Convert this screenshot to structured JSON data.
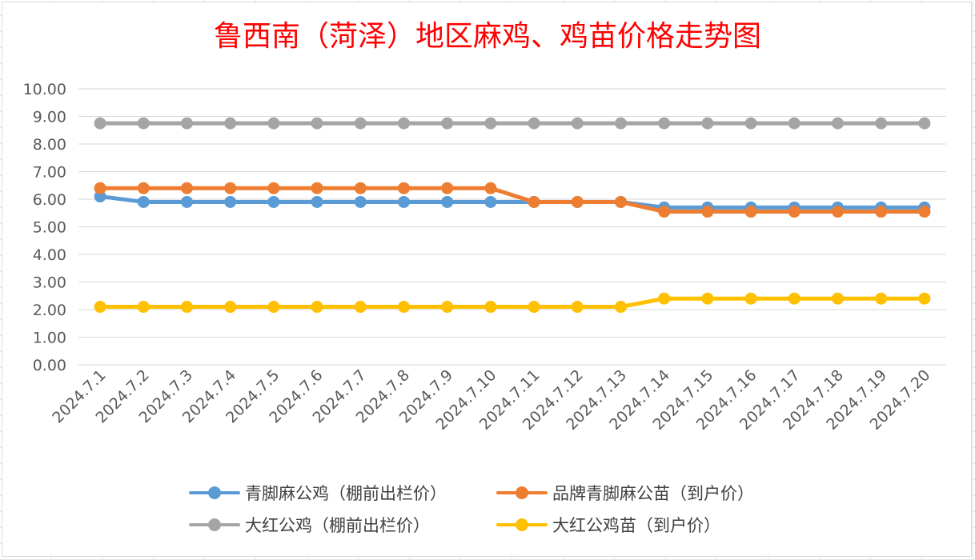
{
  "chart_data": {
    "type": "line",
    "title": "鲁西南（菏泽）地区麻鸡、鸡苗价格走势图",
    "xlabel": "",
    "ylabel": "",
    "ylim": [
      0,
      10
    ],
    "yticks": [
      "0.00",
      "1.00",
      "2.00",
      "3.00",
      "4.00",
      "5.00",
      "6.00",
      "7.00",
      "8.00",
      "9.00",
      "10.00"
    ],
    "grid": true,
    "legend_position": "bottom",
    "categories": [
      "2024.7.1",
      "2024.7.2",
      "2024.7.3",
      "2024.7.4",
      "2024.7.5",
      "2024.7.6",
      "2024.7.7",
      "2024.7.8",
      "2024.7.9",
      "2024.7.10",
      "2024.7.11",
      "2024.7.12",
      "2024.7.13",
      "2024.7.14",
      "2024.7.15",
      "2024.7.16",
      "2024.7.17",
      "2024.7.18",
      "2024.7.19",
      "2024.7.20"
    ],
    "series": [
      {
        "name": "青脚麻公鸡（棚前出栏价）",
        "color": "#5b9bd5",
        "values": [
          6.1,
          5.9,
          5.9,
          5.9,
          5.9,
          5.9,
          5.9,
          5.9,
          5.9,
          5.9,
          5.9,
          5.9,
          5.9,
          5.7,
          5.7,
          5.7,
          5.7,
          5.7,
          5.7,
          5.7
        ]
      },
      {
        "name": "品牌青脚麻公苗（到户价）",
        "color": "#ed7d31",
        "values": [
          6.4,
          6.4,
          6.4,
          6.4,
          6.4,
          6.4,
          6.4,
          6.4,
          6.4,
          6.4,
          5.9,
          5.9,
          5.9,
          5.55,
          5.55,
          5.55,
          5.55,
          5.55,
          5.55,
          5.55
        ]
      },
      {
        "name": "大红公鸡（棚前出栏价）",
        "color": "#a5a5a5",
        "values": [
          8.75,
          8.75,
          8.75,
          8.75,
          8.75,
          8.75,
          8.75,
          8.75,
          8.75,
          8.75,
          8.75,
          8.75,
          8.75,
          8.75,
          8.75,
          8.75,
          8.75,
          8.75,
          8.75,
          8.75
        ]
      },
      {
        "name": "大红公鸡苗（到户价）",
        "color": "#ffc000",
        "values": [
          2.1,
          2.1,
          2.1,
          2.1,
          2.1,
          2.1,
          2.1,
          2.1,
          2.1,
          2.1,
          2.1,
          2.1,
          2.1,
          2.4,
          2.4,
          2.4,
          2.4,
          2.4,
          2.4,
          2.4
        ]
      }
    ]
  }
}
